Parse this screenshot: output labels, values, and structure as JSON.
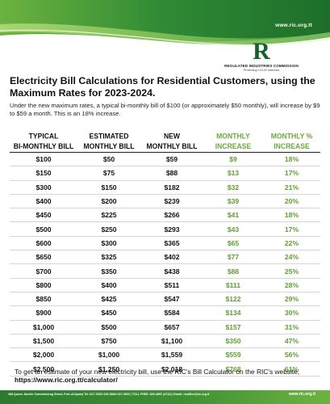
{
  "header": {
    "website": "www.ric.org.tt",
    "logo_letter": "R",
    "org_name": "REGULATED INDUSTRIES COMMISSION",
    "tagline": "Protecting YOUR Interests",
    "colors": {
      "dark_green": "#1e7a2a",
      "light_green": "#8cc63f"
    }
  },
  "title": "Electricity Bill Calculations for Residential Customers, using the Maximum Rates for 2023-2024.",
  "intro": "Under the new maximum rates, a typical bi-monthly bill of $100 (or approximately $50 monthly), will increase by $9 to $59 a month. This is an 18% increase.",
  "table": {
    "headers": [
      {
        "line1": "TYPICAL",
        "line2": "BI-MONTHLY BILL"
      },
      {
        "line1": "ESTIMATED",
        "line2": "MONTHLY BILL"
      },
      {
        "line1": "NEW",
        "line2": "MONTHLY BILL"
      },
      {
        "line1": "MONTHLY",
        "line2": "INCREASE"
      },
      {
        "line1": "MONTHLY %",
        "line2": "INCREASE"
      }
    ],
    "rows": [
      [
        "$100",
        "$50",
        "$59",
        "$9",
        "18%"
      ],
      [
        "$150",
        "$75",
        "$88",
        "$13",
        "17%"
      ],
      [
        "$300",
        "$150",
        "$182",
        "$32",
        "21%"
      ],
      [
        "$400",
        "$200",
        "$239",
        "$39",
        "20%"
      ],
      [
        "$450",
        "$225",
        "$266",
        "$41",
        "18%"
      ],
      [
        "$500",
        "$250",
        "$293",
        "$43",
        "17%"
      ],
      [
        "$600",
        "$300",
        "$365",
        "$65",
        "22%"
      ],
      [
        "$650",
        "$325",
        "$402",
        "$77",
        "24%"
      ],
      [
        "$700",
        "$350",
        "$438",
        "$88",
        "25%"
      ],
      [
        "$800",
        "$400",
        "$511",
        "$111",
        "28%"
      ],
      [
        "$850",
        "$425",
        "$547",
        "$122",
        "29%"
      ],
      [
        "$900",
        "$450",
        "$584",
        "$134",
        "30%"
      ],
      [
        "$1,000",
        "$500",
        "$657",
        "$157",
        "31%"
      ],
      [
        "$1,500",
        "$750",
        "$1,100",
        "$350",
        "47%"
      ],
      [
        "$2,000",
        "$1,000",
        "$1,559",
        "$559",
        "56%"
      ],
      [
        "$2,500",
        "$1,250",
        "$2,018",
        "$768",
        "61%"
      ]
    ]
  },
  "footer": {
    "note": "To get an estimate of your new electricity bill, use the RIC's Bill Calculator on the RIC's website, ",
    "calc_url": "https://www.ric.org.tt/calculator/",
    "address": "#88 Queen Janelle Commissiong Street, Port-of-Spain| Tel: 627-7820/ 625-5384/ 627-0503 | TOLL FREE: 800-4RIC (4742) | Email: ricoffice@ric.org.tt",
    "website": "www.ric.org.tt"
  }
}
